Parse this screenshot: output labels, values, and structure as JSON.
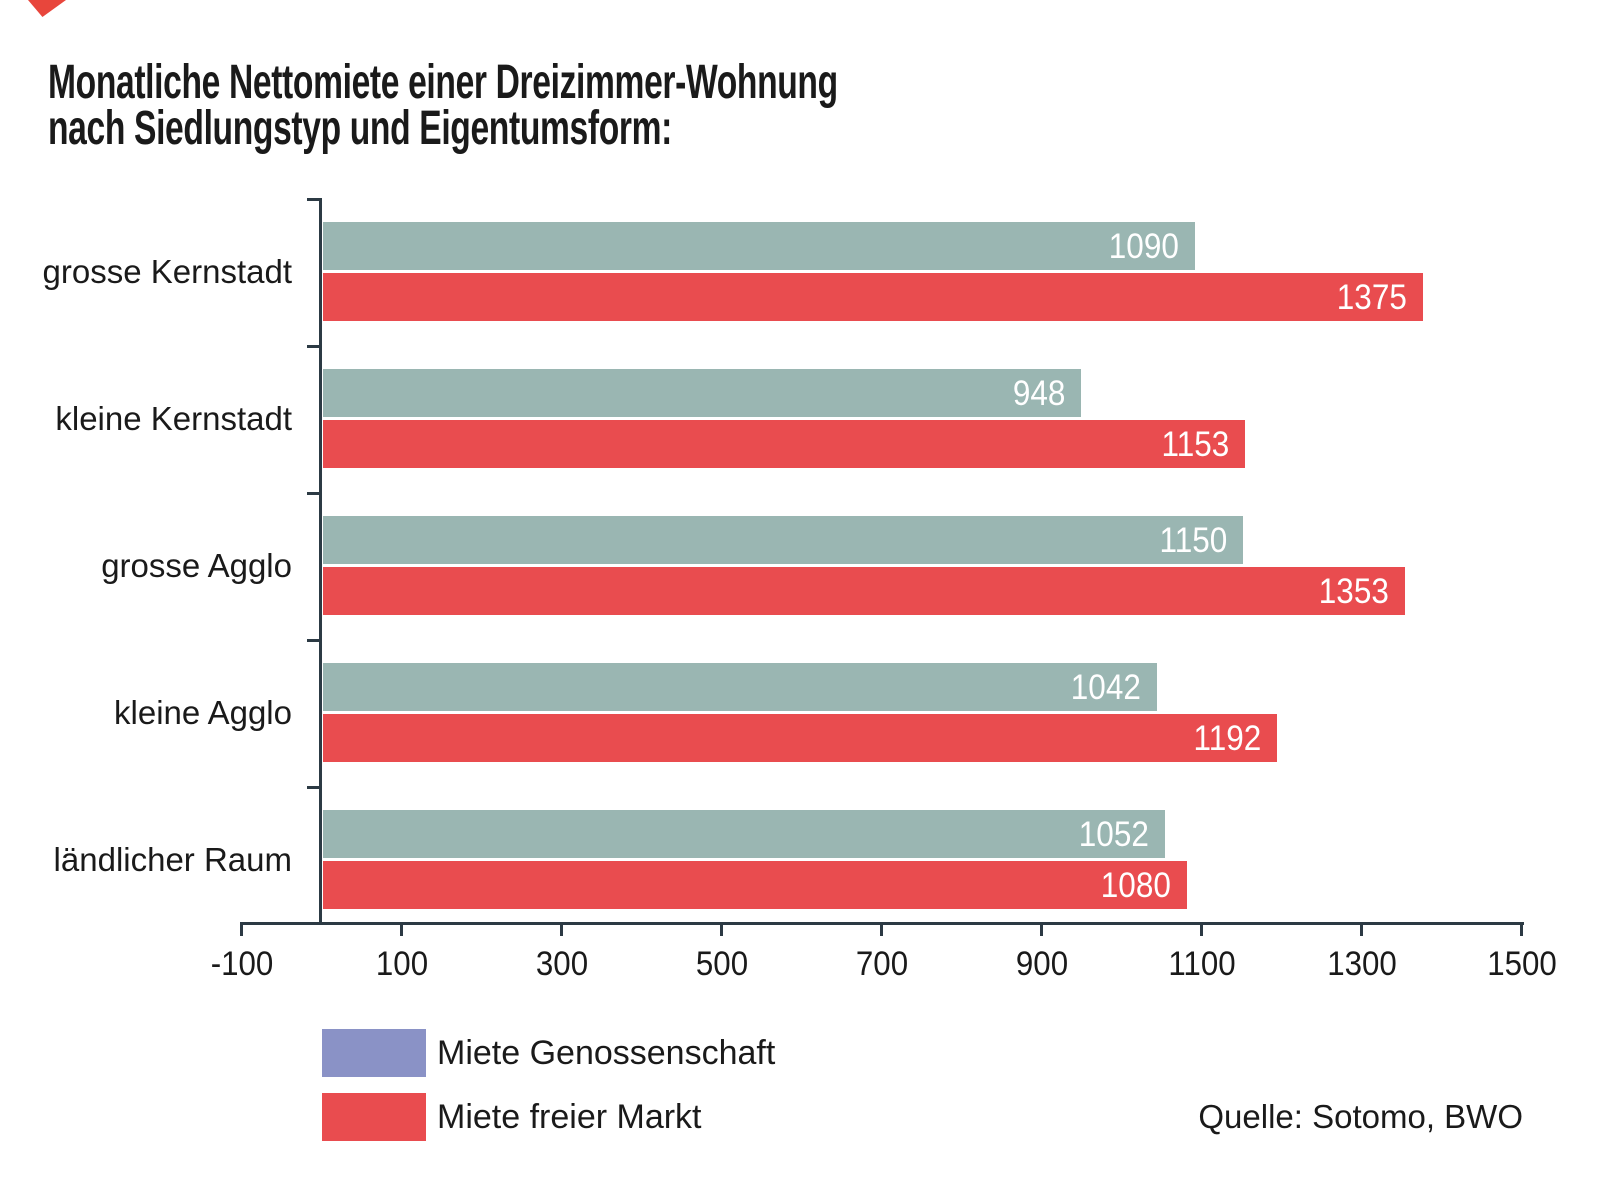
{
  "logo": {
    "color": "#e8463c"
  },
  "title": {
    "line1": "Monatliche Nettomiete einer Dreizimmer-Wohnung",
    "line2": "nach Siedlungstyp und Eigentumsform:"
  },
  "source": "Quelle: Sotomo, BWO",
  "legend": [
    {
      "label": "Miete Genossenschaft",
      "color": "#8a92c6"
    },
    {
      "label": "Miete freier Markt",
      "color": "#e94c4f"
    }
  ],
  "chart_data": {
    "type": "bar",
    "orientation": "horizontal",
    "title": "Monatliche Nettomiete einer Dreizimmer-Wohnung nach Siedlungstyp und Eigentumsform:",
    "categories": [
      "grosse Kernstadt",
      "kleine Kernstadt",
      "grosse Agglo",
      "kleine Agglo",
      "ländlicher Raum"
    ],
    "series": [
      {
        "name": "Miete Genossenschaft",
        "color": "#9ab6b2",
        "values": [
          1090,
          948,
          1150,
          1042,
          1052
        ]
      },
      {
        "name": "Miete freier Markt",
        "color": "#e94c4f",
        "values": [
          1375,
          1153,
          1353,
          1192,
          1080
        ]
      }
    ],
    "x_ticks": [
      -100,
      100,
      300,
      500,
      700,
      900,
      1100,
      1300,
      1500
    ],
    "xlim": [
      -100,
      1500
    ],
    "xlabel": "",
    "ylabel": "",
    "grid": false,
    "value_labels": "white, inside bar end",
    "axis_color": "#2c3a44",
    "legend_position": "bottom-left"
  }
}
